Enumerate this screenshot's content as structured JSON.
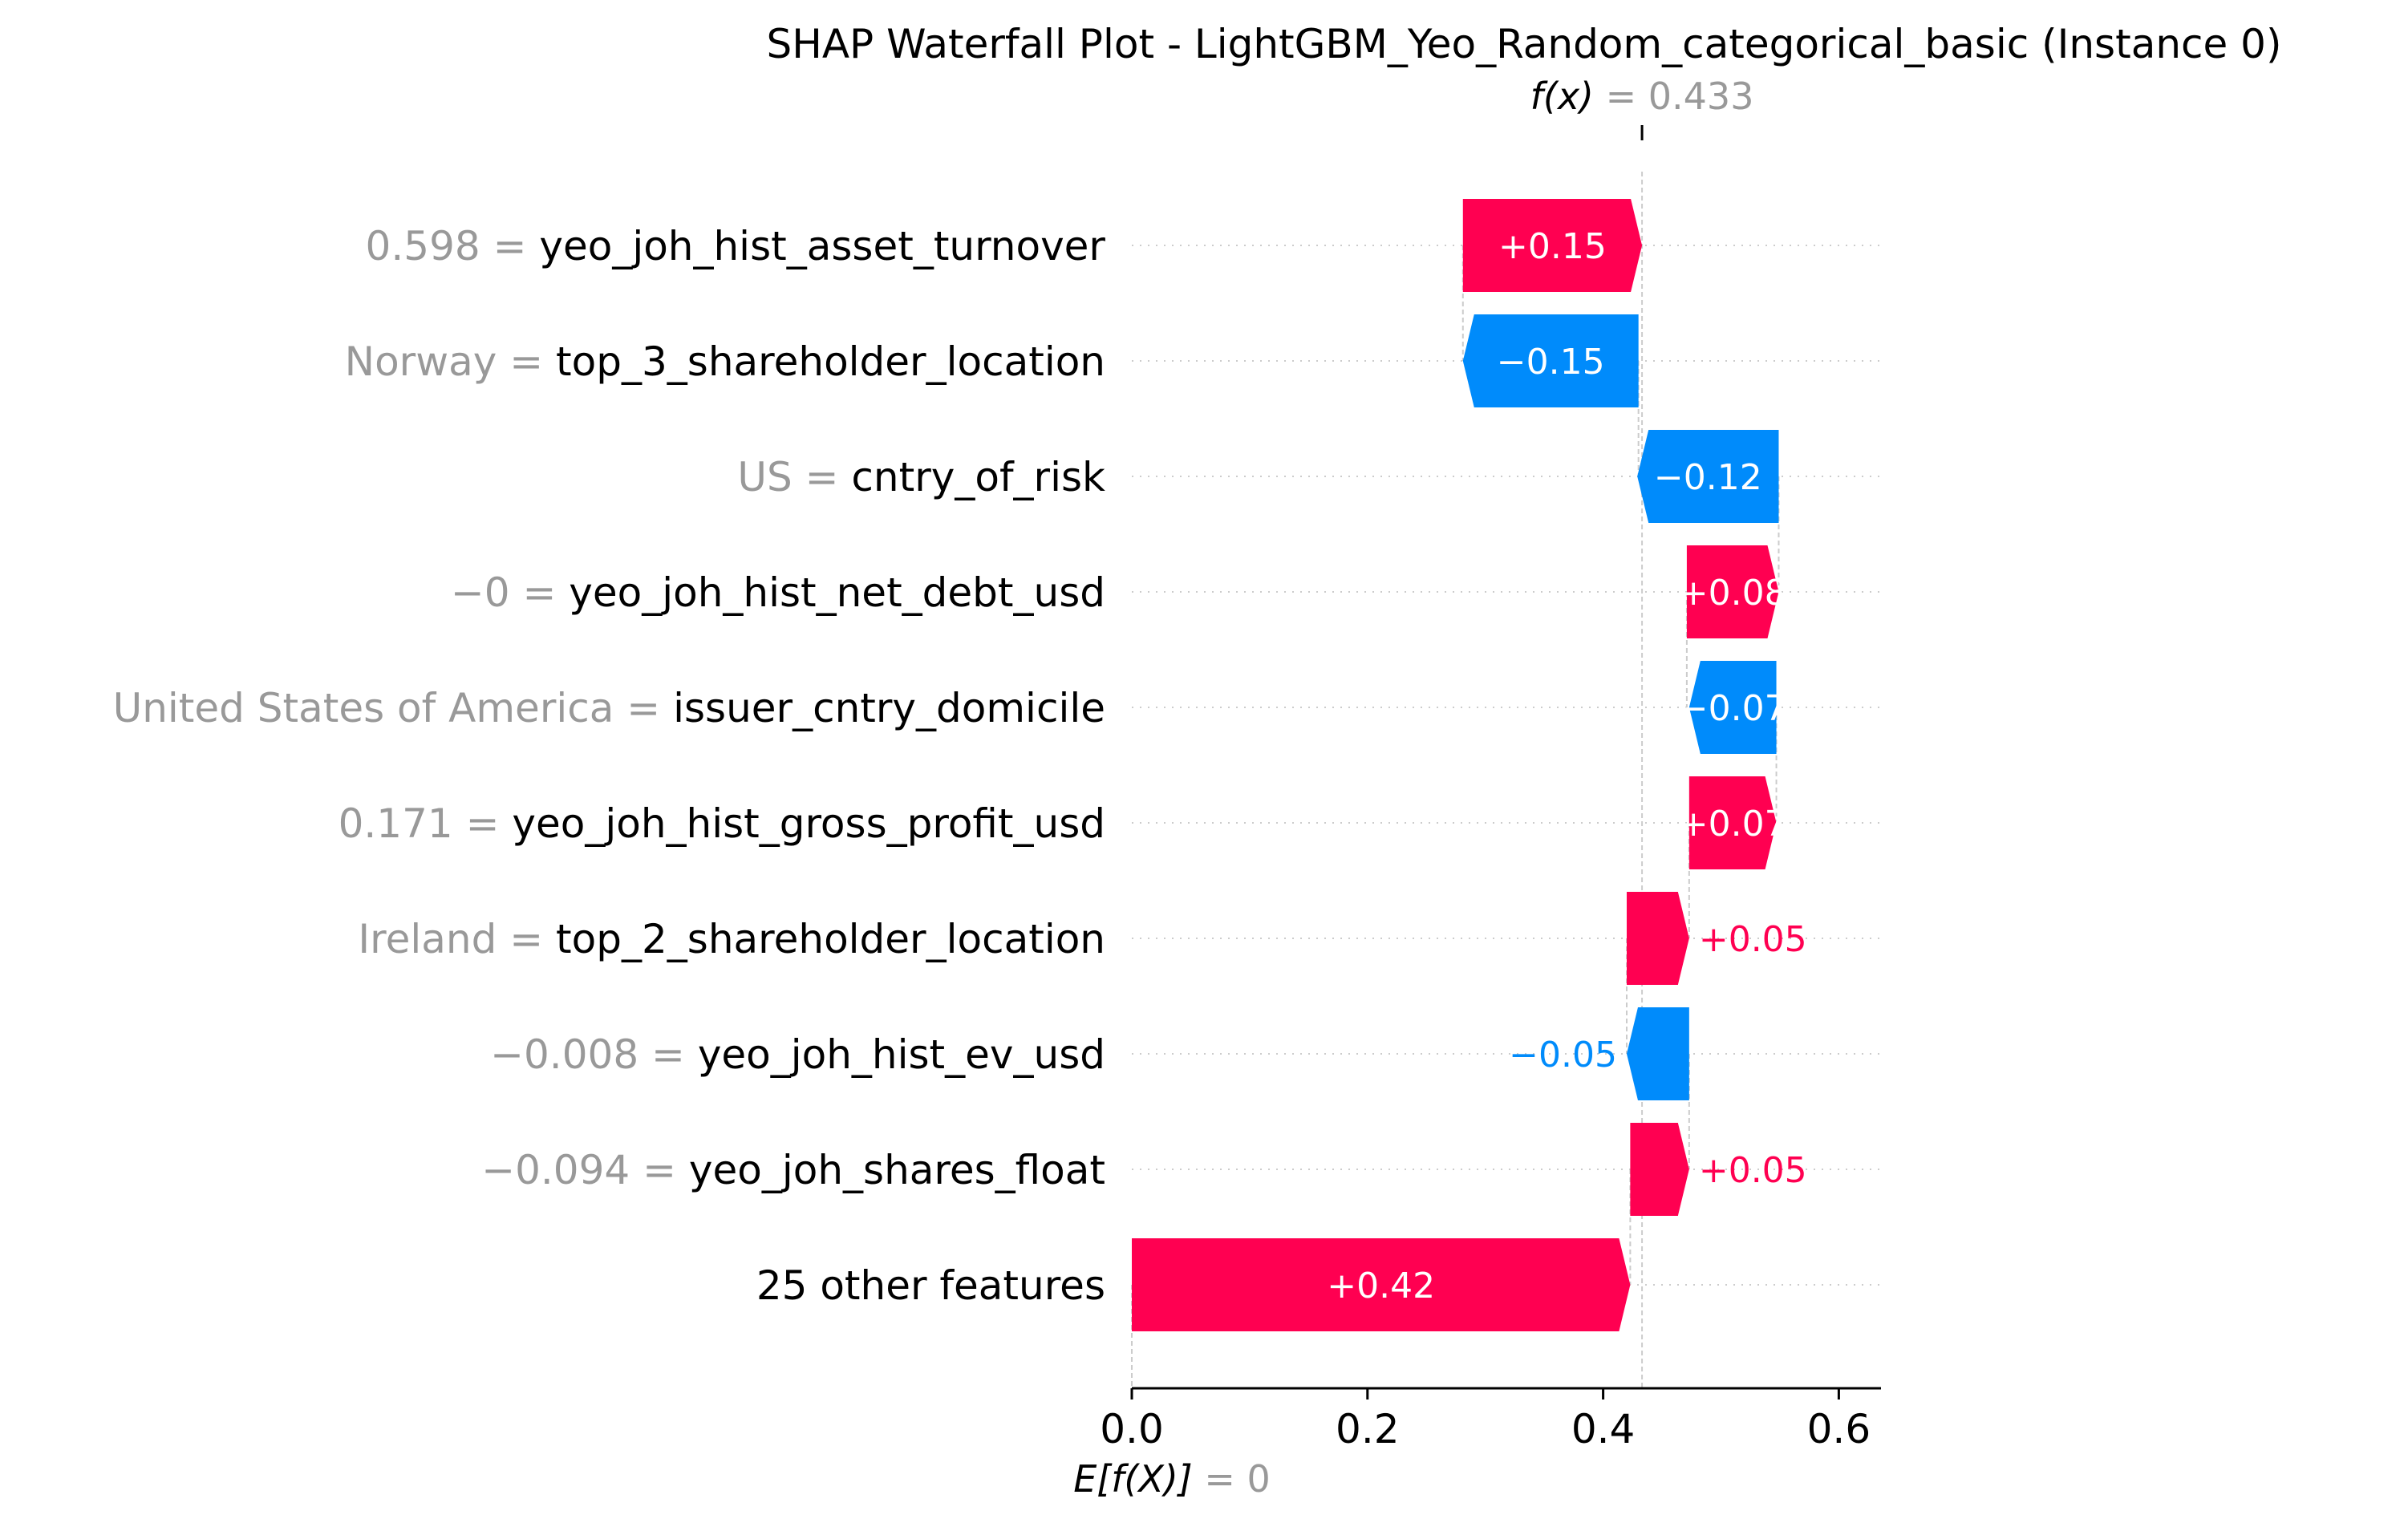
{
  "chart_data": {
    "type": "waterfall",
    "title": "SHAP Waterfall Plot - LightGBM_Yeo_Random_categorical_basic (Instance 0)",
    "fx": {
      "label": "f(x)",
      "value_text": "0.433",
      "value": 0.433
    },
    "base": {
      "label": "E[f(X)]",
      "value_text": "0",
      "value": 0
    },
    "xlim": [
      0.0,
      0.64
    ],
    "xticks": [
      {
        "value": 0.0,
        "label": "0.0"
      },
      {
        "value": 0.2,
        "label": "0.2"
      },
      {
        "value": 0.4,
        "label": "0.4"
      },
      {
        "value": 0.6,
        "label": "0.6"
      }
    ],
    "colors": {
      "positive": "#ff0051",
      "negative": "#008bfb",
      "feature_value": "#999999",
      "grid": "#cccccc"
    },
    "features": [
      {
        "value_text": "0.598",
        "name": "yeo_joh_hist_asset_turnover",
        "shap": 0.152,
        "label": "+0.15",
        "start": 0.281
      },
      {
        "value_text": "Norway",
        "name": "top_3_shareholder_location",
        "shap": -0.149,
        "label": "−0.15",
        "start": 0.43
      },
      {
        "value_text": "US",
        "name": "cntry_of_risk",
        "shap": -0.12,
        "label": "−0.12",
        "start": 0.549
      },
      {
        "value_text": "−0",
        "name": "yeo_joh_hist_net_debt_usd",
        "shap": 0.078,
        "label": "+0.08",
        "start": 0.471
      },
      {
        "value_text": "United States of America",
        "name": "issuer_cntry_domicile",
        "shap": -0.074,
        "label": "−0.07",
        "start": 0.547
      },
      {
        "value_text": "0.171",
        "name": "yeo_joh_hist_gross_profit_usd",
        "shap": 0.074,
        "label": "+0.07",
        "start": 0.473
      },
      {
        "value_text": "Ireland",
        "name": "top_2_shareholder_location",
        "shap": 0.053,
        "label": "+0.05",
        "start": 0.42
      },
      {
        "value_text": "−0.008",
        "name": "yeo_joh_hist_ev_usd",
        "shap": -0.053,
        "label": "−0.05",
        "start": 0.473
      },
      {
        "value_text": "−0.094",
        "name": "yeo_joh_shares_float",
        "shap": 0.05,
        "label": "+0.05",
        "start": 0.423
      },
      {
        "value_text": "",
        "name": "25 other features",
        "shap": 0.423,
        "label": "+0.42",
        "start": 0.0
      }
    ]
  }
}
